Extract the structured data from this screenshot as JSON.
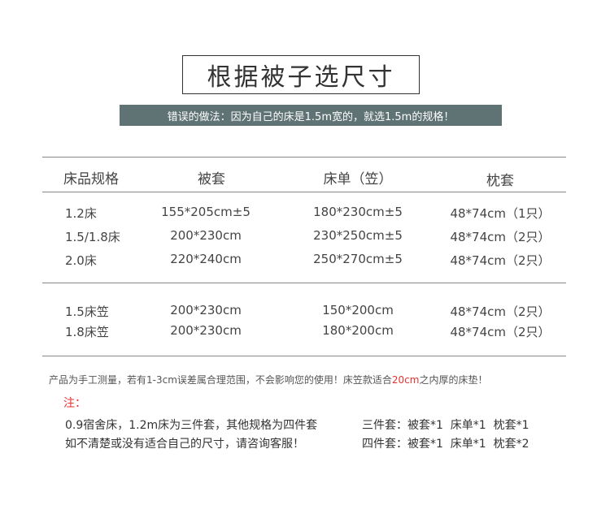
{
  "title": "根据被子选尺寸",
  "banner": "错误的做法：因为自己的床是1.5m宽的，就选1.5m的规格！",
  "table": {
    "headers": [
      "床品规格",
      "被套",
      "床单（笠）",
      "枕套"
    ],
    "group1": [
      [
        "1.2床",
        "155*205cm±5",
        "180*230cm±5",
        "48*74cm（1只）"
      ],
      [
        "1.5/1.8床",
        "200*230cm",
        "230*250cm±5",
        "48*74cm（2只）"
      ],
      [
        "2.0床",
        "220*240cm",
        "250*270cm±5",
        "48*74cm（2只）"
      ]
    ],
    "group2": [
      [
        "1.5床笠",
        "200*230cm",
        "150*200cm",
        "48*74cm（2只）"
      ],
      [
        "1.8床笠",
        "200*230cm",
        "180*200cm",
        "48*74cm（2只）"
      ]
    ]
  },
  "disclaimer": {
    "before": "产品为手工测量，若有1-3cm误差属合理范围，不会影响您的使用！床笠款适合",
    "highlight": "20cm",
    "after": "之内厚的床垫！"
  },
  "note_label": "注：",
  "notes_left": [
    "0.9宿舍床，1.2m床为三件套，其他规格为四件套",
    "如不清楚或没有适合自己的尺寸，请咨询客服！"
  ],
  "notes_right": [
    "三件套：被套*1  床单*1  枕套*1",
    "四件套：被套*1  床单*1  枕套*2"
  ],
  "colors": {
    "banner": "#5f7274",
    "highlight": "#e8322f"
  }
}
